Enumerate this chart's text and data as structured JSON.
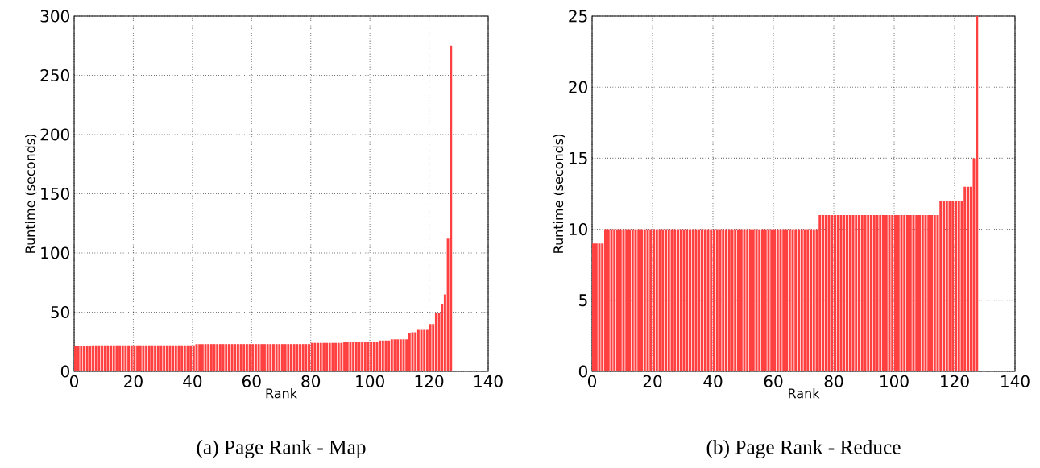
{
  "chart_data": [
    {
      "type": "bar",
      "title": "(a) Page Rank - Map",
      "xlabel": "Rank",
      "ylabel": "Runtime (seconds)",
      "color": "#ff4040",
      "grid": true,
      "x": [
        0,
        1,
        2,
        3,
        4,
        5,
        6,
        7,
        8,
        9,
        10,
        11,
        12,
        13,
        14,
        15,
        16,
        17,
        18,
        19,
        20,
        21,
        22,
        23,
        24,
        25,
        26,
        27,
        28,
        29,
        30,
        31,
        32,
        33,
        34,
        35,
        36,
        37,
        38,
        39,
        40,
        41,
        42,
        43,
        44,
        45,
        46,
        47,
        48,
        49,
        50,
        51,
        52,
        53,
        54,
        55,
        56,
        57,
        58,
        59,
        60,
        61,
        62,
        63,
        64,
        65,
        66,
        67,
        68,
        69,
        70,
        71,
        72,
        73,
        74,
        75,
        76,
        77,
        78,
        79,
        80,
        81,
        82,
        83,
        84,
        85,
        86,
        87,
        88,
        89,
        90,
        91,
        92,
        93,
        94,
        95,
        96,
        97,
        98,
        99,
        100,
        101,
        102,
        103,
        104,
        105,
        106,
        107,
        108,
        109,
        110,
        111,
        112,
        113,
        114,
        115,
        116,
        117,
        118,
        119,
        120,
        121,
        122,
        123,
        124,
        125,
        126,
        127
      ],
      "values": [
        21,
        21,
        21,
        21,
        21,
        21,
        22,
        22,
        22,
        22,
        22,
        22,
        22,
        22,
        22,
        22,
        22,
        22,
        22,
        22,
        22,
        22,
        22,
        22,
        22,
        22,
        22,
        22,
        22,
        22,
        22,
        22,
        22,
        22,
        22,
        22,
        22,
        22,
        22,
        22,
        22,
        23,
        23,
        23,
        23,
        23,
        23,
        23,
        23,
        23,
        23,
        23,
        23,
        23,
        23,
        23,
        23,
        23,
        23,
        23,
        23,
        23,
        23,
        23,
        23,
        23,
        23,
        23,
        23,
        23,
        23,
        23,
        23,
        23,
        23,
        23,
        23,
        23,
        23,
        23,
        24,
        24,
        24,
        24,
        24,
        24,
        24,
        24,
        24,
        24,
        24,
        25,
        25,
        25,
        25,
        25,
        25,
        25,
        25,
        25,
        25,
        25,
        25,
        26,
        26,
        26,
        26,
        27,
        27,
        27,
        27,
        27,
        27,
        32,
        33,
        33,
        35,
        35,
        35,
        35,
        40,
        40,
        49,
        49,
        57,
        65,
        112,
        275
      ],
      "xlim": [
        0,
        140
      ],
      "ylim": [
        0,
        300
      ],
      "xticks": [
        0,
        20,
        40,
        60,
        80,
        100,
        120,
        140
      ],
      "yticks": [
        0,
        50,
        100,
        150,
        200,
        250,
        300
      ]
    },
    {
      "type": "bar",
      "title": "(b) Page Rank - Reduce",
      "xlabel": "Rank",
      "ylabel": "Runtime (seconds)",
      "color": "#ff4040",
      "grid": true,
      "x": [
        0,
        1,
        2,
        3,
        4,
        5,
        6,
        7,
        8,
        9,
        10,
        11,
        12,
        13,
        14,
        15,
        16,
        17,
        18,
        19,
        20,
        21,
        22,
        23,
        24,
        25,
        26,
        27,
        28,
        29,
        30,
        31,
        32,
        33,
        34,
        35,
        36,
        37,
        38,
        39,
        40,
        41,
        42,
        43,
        44,
        45,
        46,
        47,
        48,
        49,
        50,
        51,
        52,
        53,
        54,
        55,
        56,
        57,
        58,
        59,
        60,
        61,
        62,
        63,
        64,
        65,
        66,
        67,
        68,
        69,
        70,
        71,
        72,
        73,
        74,
        75,
        76,
        77,
        78,
        79,
        80,
        81,
        82,
        83,
        84,
        85,
        86,
        87,
        88,
        89,
        90,
        91,
        92,
        93,
        94,
        95,
        96,
        97,
        98,
        99,
        100,
        101,
        102,
        103,
        104,
        105,
        106,
        107,
        108,
        109,
        110,
        111,
        112,
        113,
        114,
        115,
        116,
        117,
        118,
        119,
        120,
        121,
        122,
        123,
        124,
        125,
        126,
        127
      ],
      "values": [
        9,
        9,
        9,
        9,
        10,
        10,
        10,
        10,
        10,
        10,
        10,
        10,
        10,
        10,
        10,
        10,
        10,
        10,
        10,
        10,
        10,
        10,
        10,
        10,
        10,
        10,
        10,
        10,
        10,
        10,
        10,
        10,
        10,
        10,
        10,
        10,
        10,
        10,
        10,
        10,
        10,
        10,
        10,
        10,
        10,
        10,
        10,
        10,
        10,
        10,
        10,
        10,
        10,
        10,
        10,
        10,
        10,
        10,
        10,
        10,
        10,
        10,
        10,
        10,
        10,
        10,
        10,
        10,
        10,
        10,
        10,
        10,
        10,
        10,
        10,
        11,
        11,
        11,
        11,
        11,
        11,
        11,
        11,
        11,
        11,
        11,
        11,
        11,
        11,
        11,
        11,
        11,
        11,
        11,
        11,
        11,
        11,
        11,
        11,
        11,
        11,
        11,
        11,
        11,
        11,
        11,
        11,
        11,
        11,
        11,
        11,
        11,
        11,
        11,
        11,
        12,
        12,
        12,
        12,
        12,
        12,
        12,
        12,
        13,
        13,
        13,
        15,
        25
      ],
      "xlim": [
        0,
        140
      ],
      "ylim": [
        0,
        25
      ],
      "xticks": [
        0,
        20,
        40,
        60,
        80,
        100,
        120,
        140
      ],
      "yticks": [
        0,
        5,
        10,
        15,
        20,
        25
      ]
    }
  ]
}
